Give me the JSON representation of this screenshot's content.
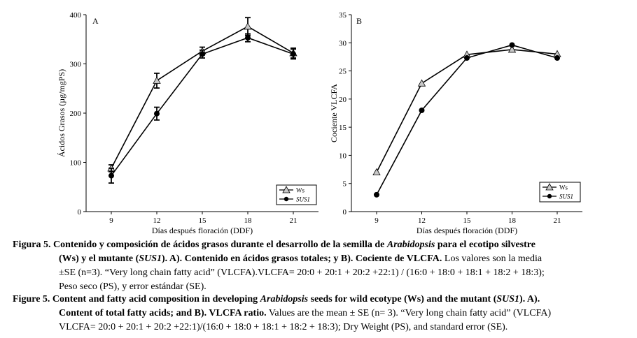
{
  "chart_data": [
    {
      "type": "line",
      "panel_label": "A",
      "title": "",
      "xlabel": "Días después floración (DDF)",
      "ylabel": "Ácidos Grasos (µg/mgPS)",
      "x": [
        9,
        12,
        15,
        18,
        21
      ],
      "ylim": [
        0,
        400
      ],
      "yticks": [
        0,
        100,
        200,
        300,
        400
      ],
      "legend_position": "bottom-right",
      "series": [
        {
          "name": "Ws",
          "marker": "triangle",
          "values": [
            88,
            266,
            326,
            376,
            322
          ],
          "errors": [
            7,
            15,
            8,
            18,
            10
          ]
        },
        {
          "name": "SUS1",
          "marker": "circle",
          "values": [
            73,
            199,
            320,
            353,
            320
          ],
          "errors": [
            15,
            13,
            8,
            8,
            10
          ]
        }
      ]
    },
    {
      "type": "line",
      "panel_label": "B",
      "title": "",
      "xlabel": "Días después floración (DDF)",
      "ylabel": "Cociente VLCFA",
      "x": [
        9,
        12,
        15,
        18,
        21
      ],
      "ylim": [
        0,
        35
      ],
      "yticks": [
        0,
        5,
        10,
        15,
        20,
        25,
        30,
        35
      ],
      "legend_position": "bottom-right",
      "series": [
        {
          "name": "Ws",
          "marker": "triangle",
          "values": [
            7.0,
            22.8,
            27.9,
            28.8,
            28.0
          ]
        },
        {
          "name": "SUS1",
          "marker": "circle",
          "values": [
            3.0,
            18.0,
            27.3,
            29.6,
            27.3
          ]
        }
      ]
    }
  ],
  "caption_es": {
    "label": "Figura 5.",
    "l1_bold": " Contenido y composición de ácidos grasos durante el desarrollo de la semilla de ",
    "l1_italic": "Arabidopsis",
    "l1_bold_end": " para el ecotipo silvestre",
    "l2_bold": "(Ws) y el mutante (",
    "l2_italic": "SUS1",
    "l2_bold_end": "). A). Contenido en ácidos grasos totales; y B). Cociente de VLCFA.",
    "l2_normal": " Los valores son la media",
    "l3": "±SE (n=3). “Very long chain fatty acid” (VLCFA).VLCFA= 20:0 + 20:1 + 20:2 +22:1) / (16:0 + 18:0 + 18:1 + 18:2 + 18:3);",
    "l4": "Peso seco (PS), y error estándar (SE)."
  },
  "caption_en": {
    "label": "Figure 5.",
    "l1_bold": " Content and fatty acid composition in developing ",
    "l1_italic": "Arabidopsis",
    "l1_bold_mid": " seeds for wild ecotype (Ws) and the mutant (",
    "l1_italic2": "SUS1",
    "l1_bold_end": "). A).",
    "l2_bold": "Content of total fatty acids; and B). VLCFA ratio.",
    "l2_normal": " Values are the mean ± SE (n= 3). “Very long chain fatty acid” (VLCFA)",
    "l3": "VLCFA= 20:0 + 20:1 + 20:2 +22:1)/(16:0 + 18:0 + 18:1 + 18:2 + 18:3); Dry Weight (PS), and standard error (SE)."
  }
}
